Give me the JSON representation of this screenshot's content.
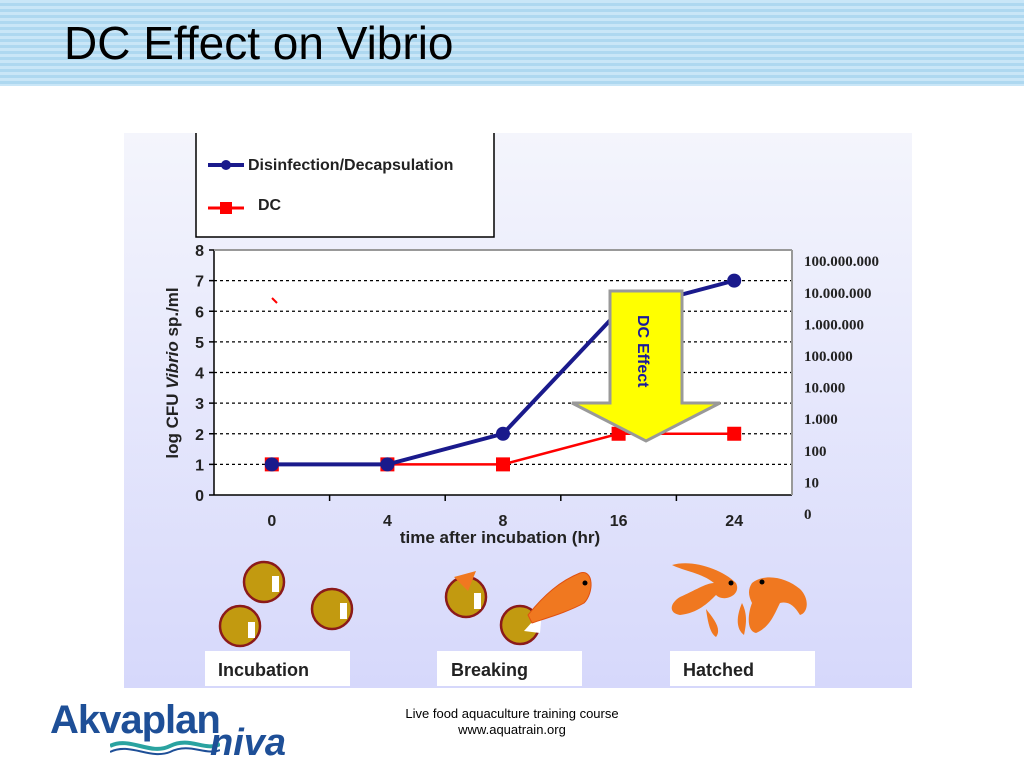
{
  "slide": {
    "title": "DC Effect on Vibrio",
    "footer_line1": "Live food aquaculture training course",
    "footer_line2": "www.aquatrain.org",
    "logo_word1": "Akvaplan",
    "logo_word2": "niva"
  },
  "chart_data": {
    "type": "line",
    "categories": [
      "0",
      "4",
      "8",
      "16",
      "24"
    ],
    "series": [
      {
        "name": "Disinfection/Decapsulation",
        "values": [
          1,
          1,
          2,
          6,
          7
        ],
        "color": "#1a1a8c",
        "marker": "circle"
      },
      {
        "name": "DC",
        "values": [
          1,
          1,
          1,
          2,
          2
        ],
        "color": "#ff0000",
        "marker": "square"
      }
    ],
    "xlabel": "time after incubation (hr)",
    "ylabel_prefix": "log CFU ",
    "ylabel_italic": "Vibrio",
    "ylabel_suffix": " sp./ml",
    "ylim": [
      0,
      8
    ],
    "yticks": [
      "0",
      "1",
      "2",
      "3",
      "4",
      "5",
      "6",
      "7",
      "8"
    ],
    "right_axis_labels": [
      "0",
      "10",
      "100",
      "1.000",
      "10.000",
      "100.000",
      "1.000.000",
      "10.000.000",
      "100.000.000"
    ],
    "grid": "horizontal-dashed",
    "legend_placement": "top-left",
    "arrow_label_1": "DC",
    "arrow_label_2": "Effect",
    "arrow_color": "#ffff00",
    "stages": [
      {
        "label": "Incubation",
        "icon": "cyst-icon"
      },
      {
        "label": "Breaking",
        "icon": "breaking-cyst-icon"
      },
      {
        "label": "Hatched",
        "icon": "nauplius-icon"
      }
    ]
  }
}
